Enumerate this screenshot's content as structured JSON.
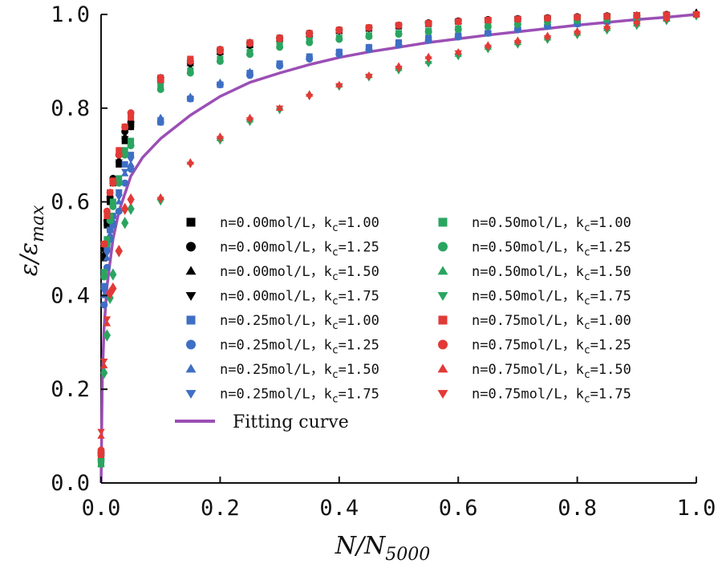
{
  "chart_data": {
    "type": "scatter",
    "title": "",
    "xlabel": "N/N",
    "xlabel_sub": "5000",
    "ylabel": "ε/ε",
    "ylabel_sub": "max",
    "xlim": [
      0.0,
      1.0
    ],
    "ylim": [
      0.0,
      1.0
    ],
    "xticks": [
      "0.0",
      "0.2",
      "0.4",
      "0.6",
      "0.8",
      "1.0"
    ],
    "yticks": [
      "0.0",
      "0.2",
      "0.4",
      "0.6",
      "0.8",
      "1.0"
    ],
    "grid": false,
    "legend_position": "center-right",
    "x": [
      0.0,
      0.005,
      0.01,
      0.015,
      0.02,
      0.03,
      0.04,
      0.05,
      0.1,
      0.15,
      0.2,
      0.25,
      0.3,
      0.35,
      0.4,
      0.45,
      0.5,
      0.55,
      0.6,
      0.65,
      0.7,
      0.75,
      0.8,
      0.85,
      0.9,
      0.95,
      1.0
    ],
    "series": [
      {
        "name": "n=0.00mol/L，k",
        "sub": "c",
        "tail": "=1.00",
        "marker": "square",
        "color": "#000000",
        "values": [
          0.05,
          0.48,
          0.55,
          0.6,
          0.64,
          0.68,
          0.73,
          0.76,
          0.86,
          0.9,
          0.92,
          0.935,
          0.945,
          0.955,
          0.965,
          0.97,
          0.975,
          0.98,
          0.985,
          0.988,
          0.99,
          0.992,
          0.994,
          0.996,
          0.998,
          0.999,
          1.0
        ]
      },
      {
        "name": "n=0.00mol/L，k",
        "sub": "c",
        "tail": "=1.25",
        "marker": "circle",
        "color": "#000000",
        "values": [
          0.06,
          0.5,
          0.56,
          0.61,
          0.65,
          0.7,
          0.75,
          0.77,
          0.865,
          0.9,
          0.925,
          0.94,
          0.95,
          0.96,
          0.967,
          0.972,
          0.977,
          0.982,
          0.986,
          0.989,
          0.991,
          0.993,
          0.995,
          0.997,
          0.998,
          1.0,
          1.0
        ]
      },
      {
        "name": "n=0.00mol/L，k",
        "sub": "c",
        "tail": "=1.50",
        "marker": "triangle-up",
        "color": "#000000",
        "values": [
          0.07,
          0.49,
          0.555,
          0.605,
          0.645,
          0.69,
          0.74,
          0.765,
          0.86,
          0.895,
          0.92,
          0.935,
          0.948,
          0.958,
          0.965,
          0.97,
          0.976,
          0.981,
          0.985,
          0.988,
          0.99,
          0.993,
          0.995,
          0.997,
          0.999,
          1.0,
          1.005
        ]
      },
      {
        "name": "n=0.00mol/L，k",
        "sub": "c",
        "tail": "=1.75",
        "marker": "triangle-down",
        "color": "#000000",
        "values": [
          0.06,
          0.485,
          0.55,
          0.6,
          0.64,
          0.685,
          0.735,
          0.76,
          0.855,
          0.89,
          0.915,
          0.93,
          0.945,
          0.955,
          0.963,
          0.969,
          0.975,
          0.98,
          0.984,
          0.987,
          0.99,
          0.992,
          0.994,
          0.996,
          0.999,
          1.0,
          1.0
        ]
      },
      {
        "name": "n=0.25mol/L，k",
        "sub": "c",
        "tail": "=1.00",
        "marker": "square",
        "color": "#3f6fc4",
        "values": [
          0.05,
          0.42,
          0.5,
          0.54,
          0.57,
          0.62,
          0.68,
          0.7,
          0.77,
          0.82,
          0.85,
          0.875,
          0.895,
          0.91,
          0.92,
          0.93,
          0.94,
          0.95,
          0.955,
          0.96,
          0.97,
          0.975,
          0.98,
          0.985,
          0.99,
          0.995,
          1.0
        ]
      },
      {
        "name": "n=0.25mol/L，k",
        "sub": "c",
        "tail": "=1.25",
        "marker": "circle",
        "color": "#3f6fc4",
        "values": [
          0.06,
          0.38,
          0.46,
          0.52,
          0.55,
          0.58,
          0.64,
          0.67,
          0.77,
          0.82,
          0.85,
          0.87,
          0.89,
          0.905,
          0.915,
          0.925,
          0.935,
          0.945,
          0.952,
          0.96,
          0.968,
          0.975,
          0.98,
          0.985,
          0.99,
          0.995,
          1.0
        ]
      },
      {
        "name": "n=0.25mol/L，k",
        "sub": "c",
        "tail": "=1.50",
        "marker": "triangle-up",
        "color": "#3f6fc4",
        "values": [
          0.05,
          0.4,
          0.48,
          0.53,
          0.56,
          0.6,
          0.66,
          0.68,
          0.78,
          0.825,
          0.855,
          0.878,
          0.895,
          0.91,
          0.92,
          0.93,
          0.94,
          0.948,
          0.955,
          0.962,
          0.97,
          0.976,
          0.981,
          0.986,
          0.99,
          0.995,
          1.0
        ]
      },
      {
        "name": "n=0.25mol/L，k",
        "sub": "c",
        "tail": "=1.75",
        "marker": "triangle-down",
        "color": "#3f6fc4",
        "values": [
          0.05,
          0.41,
          0.49,
          0.535,
          0.565,
          0.61,
          0.665,
          0.69,
          0.775,
          0.82,
          0.85,
          0.872,
          0.89,
          0.905,
          0.917,
          0.927,
          0.937,
          0.946,
          0.953,
          0.96,
          0.967,
          0.974,
          0.98,
          0.985,
          0.99,
          0.995,
          1.0
        ]
      },
      {
        "name": "n=0.50mol/L，k",
        "sub": "c",
        "tail": "=1.00",
        "marker": "square",
        "color": "#2aa560",
        "values": [
          0.04,
          0.45,
          0.52,
          0.57,
          0.6,
          0.65,
          0.71,
          0.73,
          0.85,
          0.88,
          0.905,
          0.92,
          0.935,
          0.945,
          0.95,
          0.955,
          0.96,
          0.965,
          0.97,
          0.975,
          0.98,
          0.985,
          0.988,
          0.99,
          0.993,
          0.996,
          1.0
        ]
      },
      {
        "name": "n=0.50mol/L，k",
        "sub": "c",
        "tail": "=1.25",
        "marker": "circle",
        "color": "#2aa560",
        "values": [
          0.05,
          0.44,
          0.51,
          0.56,
          0.59,
          0.64,
          0.7,
          0.72,
          0.84,
          0.875,
          0.9,
          0.915,
          0.93,
          0.94,
          0.947,
          0.953,
          0.958,
          0.963,
          0.968,
          0.974,
          0.979,
          0.984,
          0.987,
          0.99,
          0.993,
          0.996,
          1.0
        ]
      },
      {
        "name": "n=0.50mol/L，k",
        "sub": "c",
        "tail": "=1.50",
        "marker": "triangle-up",
        "color": "#2aa560",
        "values": [
          0.04,
          0.24,
          0.32,
          0.4,
          0.45,
          0.5,
          0.56,
          0.59,
          0.61,
          0.685,
          0.735,
          0.775,
          0.8,
          0.83,
          0.85,
          0.87,
          0.885,
          0.9,
          0.915,
          0.93,
          0.94,
          0.95,
          0.96,
          0.97,
          0.98,
          0.99,
          1.0
        ]
      },
      {
        "name": "n=0.50mol/L，k",
        "sub": "c",
        "tail": "=1.75",
        "marker": "triangle-down",
        "color": "#2aa560",
        "values": [
          0.04,
          0.23,
          0.31,
          0.39,
          0.44,
          0.49,
          0.55,
          0.58,
          0.6,
          0.68,
          0.73,
          0.77,
          0.795,
          0.825,
          0.845,
          0.865,
          0.88,
          0.895,
          0.91,
          0.925,
          0.935,
          0.945,
          0.955,
          0.965,
          0.975,
          0.985,
          0.995
        ]
      },
      {
        "name": "n=0.75mol/L，k",
        "sub": "c",
        "tail": "=1.00",
        "marker": "square",
        "color": "#e23a36",
        "values": [
          0.06,
          0.51,
          0.57,
          0.62,
          0.645,
          0.71,
          0.76,
          0.78,
          0.865,
          0.905,
          0.925,
          0.94,
          0.95,
          0.96,
          0.967,
          0.972,
          0.977,
          0.981,
          0.985,
          0.988,
          0.99,
          0.992,
          0.994,
          0.996,
          0.998,
          0.999,
          1.0
        ]
      },
      {
        "name": "n=0.75mol/L，k",
        "sub": "c",
        "tail": "=1.25",
        "marker": "circle",
        "color": "#e23a36",
        "values": [
          0.07,
          0.51,
          0.58,
          0.62,
          0.64,
          0.7,
          0.76,
          0.79,
          0.86,
          0.9,
          0.922,
          0.938,
          0.948,
          0.958,
          0.966,
          0.972,
          0.977,
          0.981,
          0.985,
          0.988,
          0.99,
          0.992,
          0.994,
          0.996,
          0.998,
          0.999,
          1.0
        ]
      },
      {
        "name": "n=0.75mol/L，k",
        "sub": "c",
        "tail": "=1.50",
        "marker": "triangle-up",
        "color": "#e23a36",
        "values": [
          0.1,
          0.25,
          0.34,
          0.41,
          0.42,
          0.5,
          0.59,
          0.61,
          0.61,
          0.685,
          0.74,
          0.78,
          0.8,
          0.83,
          0.85,
          0.87,
          0.89,
          0.91,
          0.92,
          0.935,
          0.945,
          0.955,
          0.965,
          0.975,
          0.985,
          0.992,
          1.0
        ]
      },
      {
        "name": "n=0.75mol/L，k",
        "sub": "c",
        "tail": "=1.75",
        "marker": "triangle-down",
        "color": "#e23a36",
        "values": [
          0.11,
          0.26,
          0.35,
          0.4,
          0.41,
          0.49,
          0.58,
          0.6,
          0.605,
          0.68,
          0.735,
          0.775,
          0.8,
          0.825,
          0.848,
          0.868,
          0.885,
          0.905,
          0.918,
          0.93,
          0.94,
          0.95,
          0.96,
          0.97,
          0.98,
          0.99,
          1.0
        ]
      }
    ],
    "fitting_curve": {
      "name": "Fitting curve",
      "color": "#9b4fb5",
      "x": [
        0.0,
        0.002,
        0.005,
        0.01,
        0.02,
        0.03,
        0.05,
        0.07,
        0.1,
        0.13,
        0.15,
        0.2,
        0.25,
        0.3,
        0.35,
        0.4,
        0.45,
        0.5,
        0.55,
        0.6,
        0.65,
        0.7,
        0.75,
        0.8,
        0.85,
        0.9,
        0.95,
        1.0
      ],
      "y": [
        0.0,
        0.22,
        0.33,
        0.42,
        0.52,
        0.58,
        0.655,
        0.695,
        0.735,
        0.765,
        0.785,
        0.825,
        0.855,
        0.875,
        0.893,
        0.908,
        0.92,
        0.93,
        0.94,
        0.948,
        0.956,
        0.963,
        0.97,
        0.977,
        0.983,
        0.989,
        0.994,
        1.0
      ]
    }
  }
}
